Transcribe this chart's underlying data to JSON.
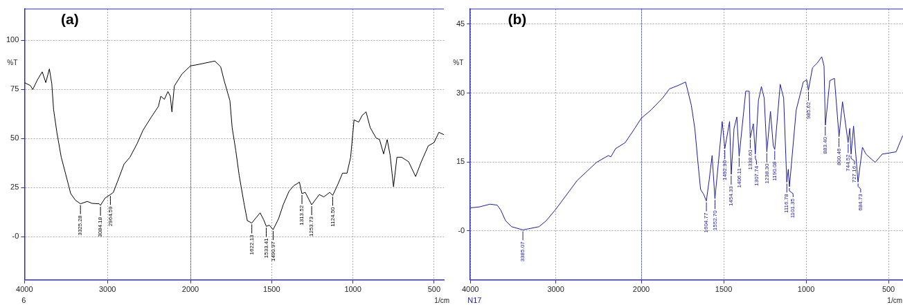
{
  "chart_data": [
    {
      "type": "line",
      "title": "(a)",
      "ylabel": "%T",
      "xlim": [
        4000,
        2000
      ],
      "ylim": [
        -22,
        116
      ],
      "xticks": [
        4000,
        3000,
        2000
      ],
      "yticks": [
        {
          "value": 0,
          "label": "-0"
        },
        25,
        50,
        75,
        100
      ],
      "grid": true,
      "marker": "none",
      "x": [
        4000,
        3929,
        3900,
        3843,
        3786,
        3743,
        3700,
        3671,
        3649,
        3609,
        3557,
        3514,
        3443,
        3386,
        3325,
        3243,
        3186,
        3100,
        3084,
        3029,
        2965,
        2929,
        2871,
        2800,
        2729,
        2643,
        2571,
        2471,
        2386,
        2357,
        2314,
        2271,
        2243,
        2223,
        2194,
        2100,
        2000
      ],
      "series": [
        {
          "color": "#000000",
          "values": [
            78.5,
            77,
            75,
            80,
            84,
            78.5,
            85.5,
            78,
            64.7,
            53,
            40.5,
            33.6,
            22,
            18.6,
            16.8,
            18,
            17,
            16.8,
            16,
            19.7,
            21.5,
            22.6,
            29,
            37,
            40.5,
            47.4,
            54.3,
            61,
            66.4,
            71.6,
            70,
            74,
            71.6,
            63.6,
            76.8,
            83,
            87
          ]
        }
      ],
      "annotations": [
        "6",
        {
          "text": "3325.28",
          "x": 3325.28,
          "y": 16.8
        },
        {
          "text": "3084.18",
          "x": 3084.18,
          "y": 16
        },
        {
          "text": "2964.59",
          "x": 2964.59,
          "y": 21.5
        }
      ]
    },
    {
      "type": "line",
      "xlabel": "1/cm",
      "xlim": [
        2000,
        440
      ],
      "ylim": [
        -22,
        116
      ],
      "xticks": [
        1500,
        1000,
        500
      ],
      "yticks": [
        0,
        25,
        50,
        75,
        100
      ],
      "grid": true,
      "marker": "none",
      "tick_labels": "x",
      "x": [
        2000,
        1936,
        1850,
        1814,
        1793,
        1757,
        1743,
        1721,
        1700,
        1671,
        1650,
        1622,
        1600,
        1571,
        1550,
        1533,
        1514,
        1491,
        1457,
        1429,
        1393,
        1364,
        1329,
        1314,
        1293,
        1254,
        1207,
        1179,
        1143,
        1124,
        1093,
        1064,
        1036,
        1014,
        993,
        964,
        943,
        919,
        893,
        857,
        836,
        811,
        789,
        771,
        750,
        729,
        700,
        657,
        614,
        579,
        536,
        500,
        471,
        440
      ],
      "series": [
        {
          "color": "#000000",
          "values": [
            87,
            88,
            89.5,
            86.6,
            79.7,
            69.3,
            55.5,
            44,
            31.3,
            17.4,
            8.2,
            7,
            9.3,
            12.2,
            8.8,
            5.3,
            5.9,
            3.6,
            9.3,
            16.3,
            23.2,
            26,
            27.8,
            22,
            22.6,
            16.3,
            21.5,
            20.3,
            22.6,
            21.1,
            26.6,
            32.4,
            32.4,
            40.5,
            59.5,
            58.4,
            61.8,
            63.6,
            55.5,
            50.3,
            49.5,
            42.2,
            49.5,
            41.6,
            25.5,
            40.5,
            40.5,
            38.2,
            30.7,
            38.2,
            46.3,
            48,
            53.2,
            52
          ]
        }
      ],
      "annotations": [
        {
          "text": "1622.13",
          "x": 1622.13,
          "y": 7
        },
        {
          "text": "1533.41",
          "x": 1533.41,
          "y": 5.3
        },
        {
          "text": "1490.97",
          "x": 1490.97,
          "y": 3.6
        },
        {
          "text": "1313.52",
          "x": 1313.52,
          "y": 22
        },
        {
          "text": "1253.73",
          "x": 1253.73,
          "y": 16.3
        },
        {
          "text": "1124.50",
          "x": 1124.5,
          "y": 21.1
        }
      ]
    },
    {
      "type": "line",
      "title": "(b)",
      "ylabel": "%T",
      "xlim": [
        4000,
        2000
      ],
      "ylim": [
        -10.7,
        48.3
      ],
      "xticks": [
        4000,
        3000,
        2000
      ],
      "yticks": [
        {
          "value": 0,
          "label": "-0"
        },
        15,
        30,
        45
      ],
      "grid": true,
      "marker": "none",
      "x": [
        4000,
        3896,
        3770,
        3686,
        3644,
        3588,
        3518,
        3385,
        3196,
        3112,
        3000,
        2888,
        2748,
        2524,
        2384,
        2356,
        2300,
        2188,
        2076,
        2000
      ],
      "series": [
        {
          "color": "#1a1aa6",
          "values": [
            5,
            5.2,
            5.8,
            5.6,
            4.5,
            2.2,
            0.9,
            0.2,
            0.9,
            2.2,
            4.7,
            7.5,
            11,
            14.9,
            16.4,
            16.1,
            17.9,
            19.2,
            22.3,
            24.5
          ]
        }
      ],
      "annotations": [
        "N17",
        {
          "text": "3385.07",
          "x": 3385.07,
          "y": 0.2
        }
      ]
    },
    {
      "type": "line",
      "xlabel": "1/cm",
      "xlim": [
        2000,
        412
      ],
      "ylim": [
        -10.7,
        48.3
      ],
      "xticks": [
        1500,
        1000,
        500
      ],
      "yticks": [
        0,
        15,
        30,
        45
      ],
      "grid": true,
      "marker": "none",
      "tick_labels": "x",
      "x": [
        2000,
        1941,
        1871,
        1829,
        1773,
        1731,
        1717,
        1696,
        1675,
        1654,
        1640,
        1622,
        1605,
        1588,
        1570,
        1553,
        1527,
        1509,
        1493,
        1464,
        1454,
        1437,
        1420,
        1406,
        1366,
        1345,
        1339,
        1320,
        1308,
        1289,
        1271,
        1254,
        1238,
        1216,
        1199,
        1190,
        1157,
        1136,
        1117,
        1108,
        1101,
        1060,
        1017,
        996,
        986,
        961,
        933,
        905,
        891,
        883,
        856,
        828,
        800,
        779,
        745,
        735,
        727,
        712,
        685,
        658,
        637,
        581,
        538,
        454,
        414
      ],
      "series": [
        {
          "color": "#1a1aa6",
          "values": [
            24.5,
            26.3,
            28.9,
            30.9,
            31.7,
            32.4,
            30.4,
            27.3,
            22.3,
            14.1,
            9,
            8,
            6.5,
            11,
            16.4,
            7,
            16.7,
            23.8,
            17.9,
            23.8,
            12.3,
            22.3,
            24.8,
            16.2,
            30.4,
            30.4,
            20.2,
            23.3,
            16.7,
            28.4,
            31.4,
            28.9,
            17.2,
            26,
            18.5,
            17.7,
            31.9,
            28.9,
            10.6,
            13.4,
            9.6,
            26.3,
            32.4,
            32.9,
            30.6,
            35.5,
            36.5,
            37.9,
            35.9,
            23,
            32.7,
            33.2,
            20.5,
            28.1,
            19.2,
            22.3,
            16.7,
            22.8,
            10.6,
            18.2,
            16.7,
            14.9,
            16.7,
            17.2,
            20.7
          ]
        }
      ],
      "annotations": [
        {
          "text": "1604.77",
          "x": 1604.77,
          "y": 6.5
        },
        {
          "text": "1552.70",
          "x": 1552.7,
          "y": 7
        },
        {
          "text": "1492.90",
          "x": 1492.9,
          "y": 17.9
        },
        {
          "text": "1454.33",
          "x": 1454.33,
          "y": 12.3
        },
        {
          "text": "1406.11",
          "x": 1406.11,
          "y": 16.2
        },
        {
          "text": "1338.60",
          "x": 1338.6,
          "y": 20.2
        },
        {
          "text": "1307.74",
          "x": 1307.74,
          "y": 16.7
        },
        {
          "text": "1238.30",
          "x": 1238.3,
          "y": 17.2
        },
        {
          "text": "1190.08",
          "x": 1190.08,
          "y": 17.7
        },
        {
          "text": "1116.78",
          "x": 1116.78,
          "y": 10.6
        },
        {
          "text": "1101.35",
          "x": 1101.35,
          "y": 9.6
        },
        {
          "text": "985.62",
          "x": 985.62,
          "y": 30.6
        },
        {
          "text": "883.40",
          "x": 883.4,
          "y": 23
        },
        {
          "text": "800.46",
          "x": 800.46,
          "y": 20.5
        },
        {
          "text": "744.52",
          "x": 744.52,
          "y": 19.2
        },
        {
          "text": "727.16",
          "x": 727.16,
          "y": 16.7
        },
        {
          "text": "684.73",
          "x": 684.73,
          "y": 10.6
        }
      ]
    }
  ]
}
